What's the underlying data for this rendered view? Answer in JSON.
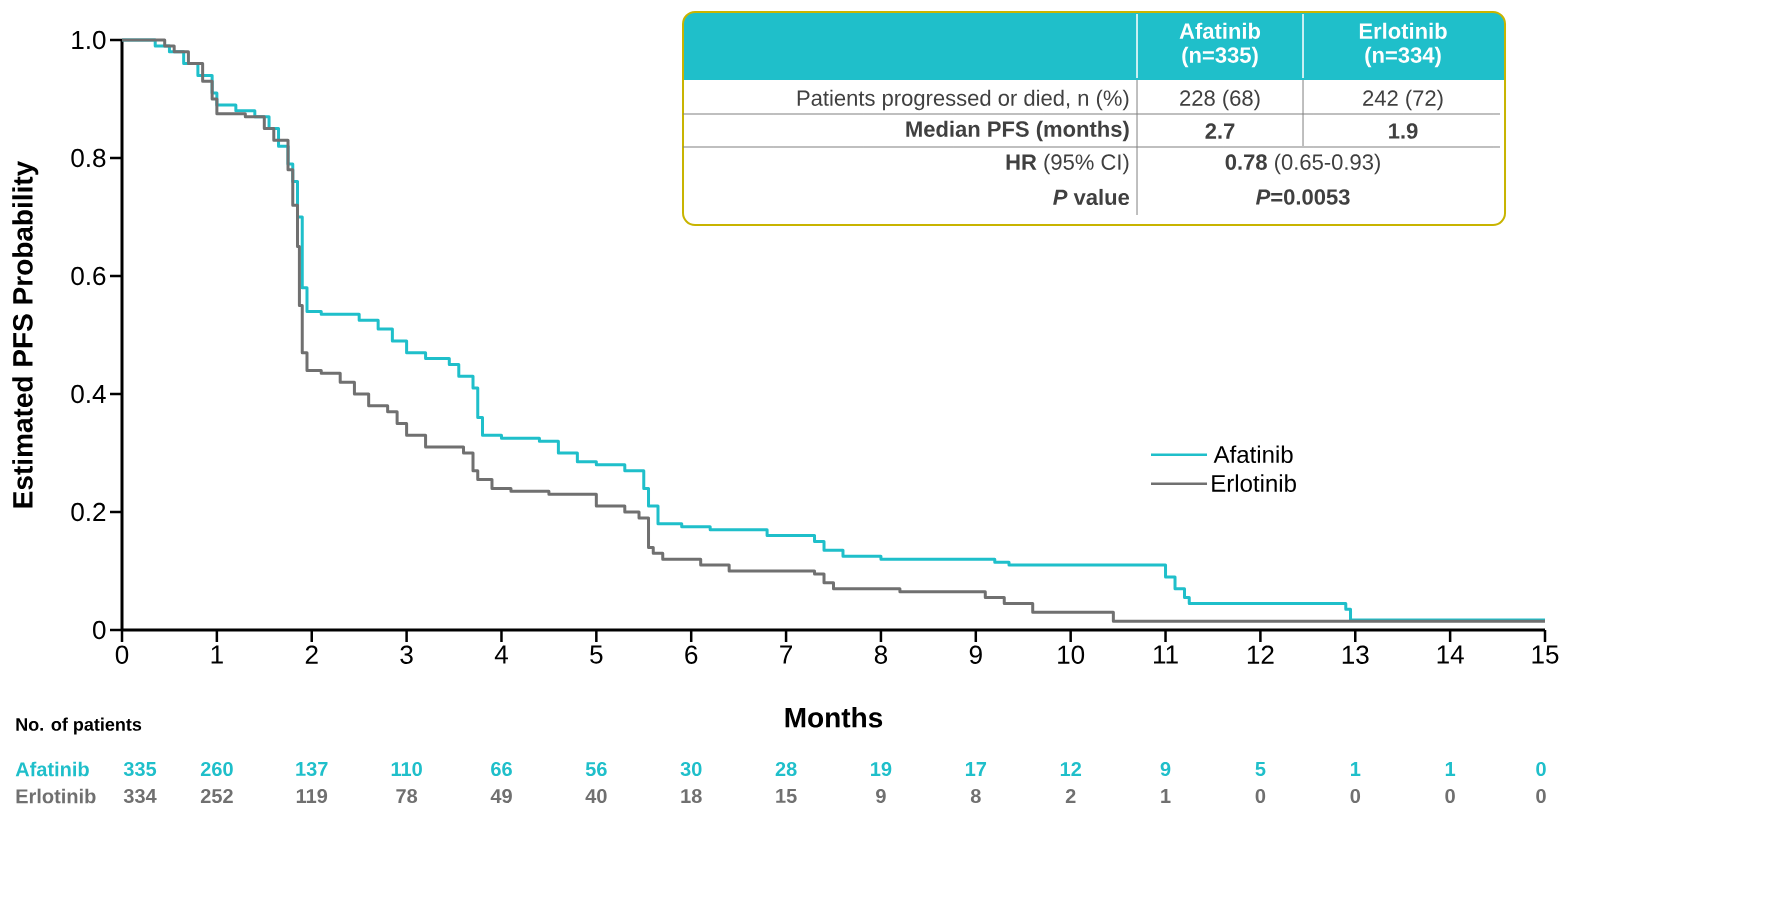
{
  "chart_data": {
    "type": "step",
    "xlabel": "Months",
    "ylabel": "Estimated PFS Probability",
    "xlim": [
      0,
      15
    ],
    "ylim": [
      0,
      1.0
    ],
    "xticks": [
      0,
      1,
      2,
      3,
      4,
      5,
      6,
      7,
      8,
      9,
      10,
      11,
      12,
      13,
      14,
      15
    ],
    "yticks": [
      {
        "value": 0,
        "label": "0"
      },
      0.2,
      0.4,
      0.6,
      0.8,
      {
        "value": 1.0,
        "label": "1.0"
      }
    ],
    "legend": "right",
    "grid": false,
    "series": [
      {
        "name": "Afatinib",
        "color": "#1fbfca",
        "x": [
          0,
          0.35,
          0.5,
          0.65,
          0.8,
          0.95,
          1.0,
          1.2,
          1.4,
          1.55,
          1.65,
          1.75,
          1.8,
          1.85,
          1.9,
          1.95,
          2.1,
          2.5,
          2.7,
          2.85,
          3.0,
          3.2,
          3.45,
          3.55,
          3.7,
          3.75,
          3.8,
          4.0,
          4.4,
          4.6,
          4.8,
          5.0,
          5.3,
          5.5,
          5.55,
          5.65,
          5.9,
          6.2,
          6.8,
          7.3,
          7.4,
          7.6,
          8.0,
          9.2,
          9.35,
          11.0,
          11.1,
          11.2,
          11.25,
          12.9,
          12.95,
          15
        ],
        "values": [
          1.0,
          0.99,
          0.98,
          0.96,
          0.94,
          0.91,
          0.89,
          0.88,
          0.87,
          0.85,
          0.82,
          0.79,
          0.76,
          0.7,
          0.58,
          0.54,
          0.535,
          0.525,
          0.51,
          0.49,
          0.47,
          0.46,
          0.45,
          0.43,
          0.41,
          0.36,
          0.33,
          0.325,
          0.32,
          0.3,
          0.285,
          0.28,
          0.27,
          0.24,
          0.21,
          0.18,
          0.175,
          0.17,
          0.16,
          0.15,
          0.135,
          0.125,
          0.12,
          0.115,
          0.11,
          0.09,
          0.07,
          0.055,
          0.045,
          0.035,
          0.017,
          0.017
        ]
      },
      {
        "name": "Erlotinib",
        "color": "#707070",
        "x": [
          0,
          0.45,
          0.55,
          0.7,
          0.85,
          0.95,
          1.0,
          1.3,
          1.5,
          1.6,
          1.75,
          1.8,
          1.85,
          1.87,
          1.9,
          1.95,
          2.1,
          2.3,
          2.45,
          2.6,
          2.8,
          2.9,
          3.0,
          3.2,
          3.6,
          3.7,
          3.75,
          3.9,
          4.1,
          4.5,
          5.0,
          5.3,
          5.45,
          5.55,
          5.6,
          5.7,
          6.1,
          6.4,
          7.3,
          7.4,
          7.5,
          8.2,
          9.1,
          9.3,
          9.6,
          10.45,
          15
        ],
        "values": [
          1.0,
          0.99,
          0.98,
          0.96,
          0.93,
          0.9,
          0.875,
          0.87,
          0.85,
          0.83,
          0.78,
          0.72,
          0.65,
          0.55,
          0.47,
          0.44,
          0.435,
          0.42,
          0.4,
          0.38,
          0.37,
          0.35,
          0.33,
          0.31,
          0.3,
          0.27,
          0.255,
          0.24,
          0.235,
          0.23,
          0.21,
          0.2,
          0.19,
          0.14,
          0.13,
          0.12,
          0.11,
          0.1,
          0.095,
          0.08,
          0.07,
          0.065,
          0.055,
          0.045,
          0.03,
          0.015,
          0.015
        ]
      }
    ],
    "annotations": [
      "Afatinib (n=335)",
      "Erlotinib (n=334)",
      "Patients progressed or died, n (%)",
      "228 (68)",
      "242 (72)",
      "Median PFS  (months)",
      "2.7",
      "1.9",
      "**HR** (95% CI)",
      "**0.78** (0.65-0.93)",
      "*P* value",
      "*P*=0.0053",
      "No. of patients",
      "Afatinib",
      "335",
      "260",
      "137",
      "110",
      "66",
      "56",
      "30",
      "28",
      "19",
      "17",
      "12",
      "9",
      "5",
      "1",
      "1",
      "0",
      "Erlotinib",
      "334",
      "252",
      "119",
      "78",
      "49",
      "40",
      "18",
      "15",
      "9",
      "8",
      "2",
      "1",
      "0",
      "0",
      "0",
      "0"
    ]
  }
}
